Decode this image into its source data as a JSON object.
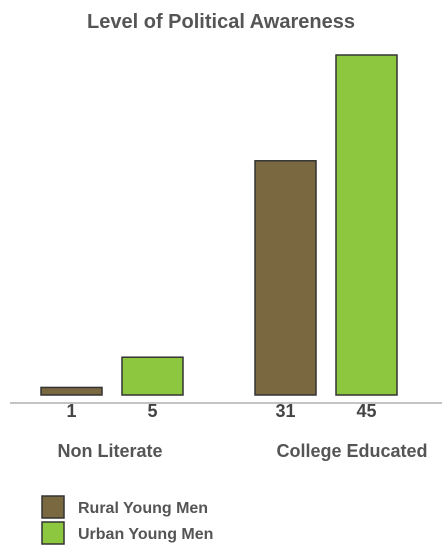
{
  "chart_data": {
    "type": "bar",
    "title": "Level of Political Awareness",
    "categories": [
      "Non Literate",
      "College Educated"
    ],
    "series": [
      {
        "name": "Rural Young Men",
        "values": [
          1,
          31
        ],
        "color": "#7a6841"
      },
      {
        "name": "Urban Young Men",
        "values": [
          5,
          45
        ],
        "color": "#8dc63f"
      }
    ],
    "ylim": [
      0,
      45
    ],
    "grid": false,
    "legend_position": "bottom-left",
    "bar_outline_color": "#333333"
  }
}
